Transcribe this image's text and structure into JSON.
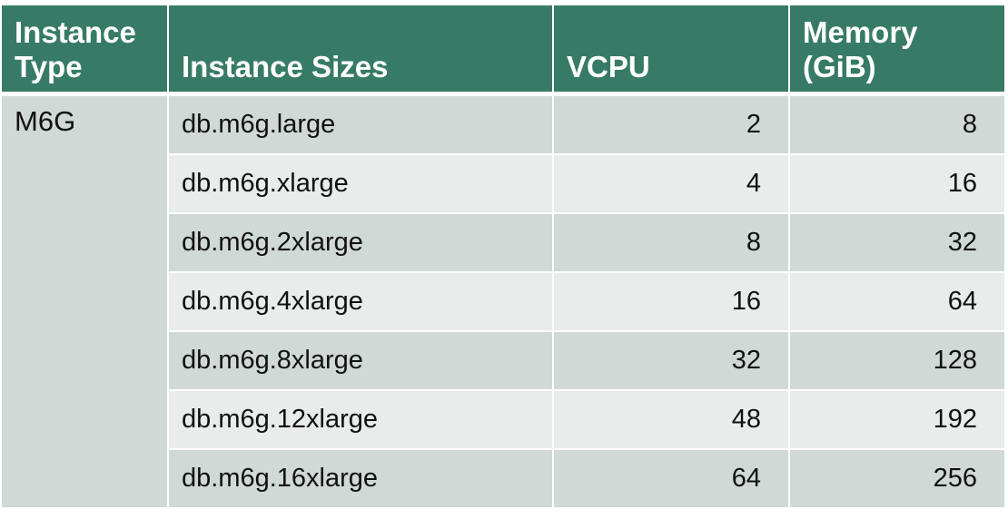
{
  "table": {
    "headers": {
      "type": "Instance Type",
      "sizes": "Instance Sizes",
      "vcpu": "VCPU",
      "memory": "Memory (GiB)"
    },
    "instance_type": "M6G",
    "rows": [
      {
        "size": "db.m6g.large",
        "vcpu": "2",
        "memory": "8"
      },
      {
        "size": "db.m6g.xlarge",
        "vcpu": "4",
        "memory": "16"
      },
      {
        "size": "db.m6g.2xlarge",
        "vcpu": "8",
        "memory": "32"
      },
      {
        "size": "db.m6g.4xlarge",
        "vcpu": "16",
        "memory": "64"
      },
      {
        "size": "db.m6g.8xlarge",
        "vcpu": "32",
        "memory": "128"
      },
      {
        "size": "db.m6g.12xlarge",
        "vcpu": "48",
        "memory": "192"
      },
      {
        "size": "db.m6g.16xlarge",
        "vcpu": "64",
        "memory": "256"
      }
    ],
    "colors": {
      "header_bg": "#377b66",
      "row_dark": "#d0d9d5",
      "row_light": "#e8ecea"
    }
  }
}
